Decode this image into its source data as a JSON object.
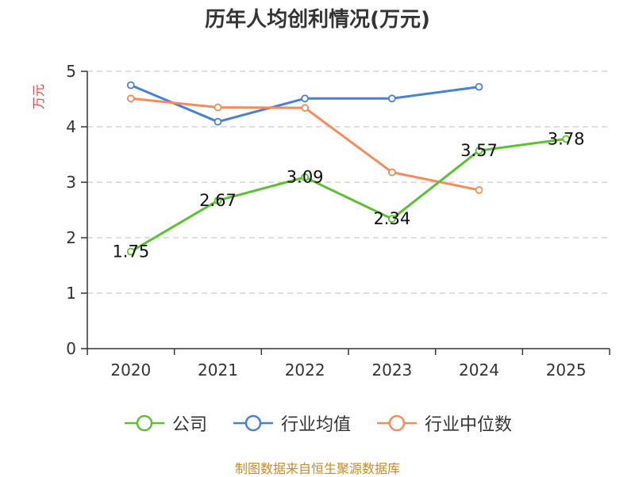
{
  "chart_data": {
    "type": "line",
    "title": "历年人均创利情况(万元)",
    "xlabel": "",
    "ylabel": "万元",
    "categories": [
      "2020",
      "2021",
      "2022",
      "2023",
      "2024",
      "2025"
    ],
    "ylim": [
      0,
      5
    ],
    "yticks": [
      "0",
      "1",
      "2",
      "3",
      "4",
      "5"
    ],
    "grid": "horizontal-dashed",
    "legend_position": "bottom",
    "series": [
      {
        "name": "公司",
        "color": "#5cc132",
        "values": [
          1.75,
          2.67,
          3.09,
          2.34,
          3.57,
          3.78
        ],
        "labels": [
          "1.75",
          "2.67",
          "3.09",
          "2.34",
          "3.57",
          "3.78"
        ]
      },
      {
        "name": "行业均值",
        "color": "#4a7fd9",
        "values": [
          4.75,
          4.09,
          4.51,
          4.51,
          4.72,
          null
        ]
      },
      {
        "name": "行业中位数",
        "color": "#f28c5a",
        "values": [
          4.51,
          4.35,
          4.34,
          3.18,
          2.86,
          null
        ]
      }
    ]
  },
  "source_text": "制图数据来自恒生聚源数据库",
  "colors": {
    "ylabel": "#e64545",
    "source": "#c58b2a",
    "grid": "#cccccc",
    "axis": "#333333"
  }
}
